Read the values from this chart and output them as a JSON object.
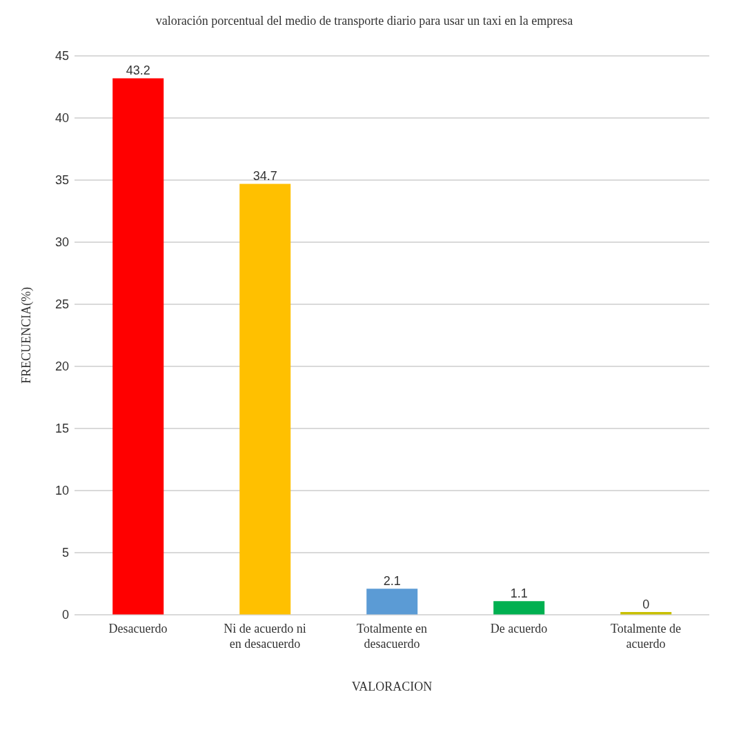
{
  "chart_data": {
    "type": "bar",
    "title": "valoración porcentual del medio de transporte diario para usar un taxi en la empresa",
    "xlabel": "VALORACION",
    "ylabel": "FRECUENCIA(%)",
    "categories": [
      "Desacuerdo",
      "Ni de acuerdo ni en desacuerdo",
      "Totalmente en desacuerdo",
      "De acuerdo",
      "Totalmente de acuerdo"
    ],
    "values": [
      43.2,
      34.7,
      2.1,
      1.1,
      0
    ],
    "colors": [
      "#ff0000",
      "#ffc000",
      "#5b9bd5",
      "#00b050",
      "#c9c000"
    ],
    "ylim": [
      0,
      45
    ],
    "yticks": [
      0,
      5,
      10,
      15,
      20,
      25,
      30,
      35,
      40,
      45
    ],
    "grid": "y",
    "data_labels": true
  }
}
